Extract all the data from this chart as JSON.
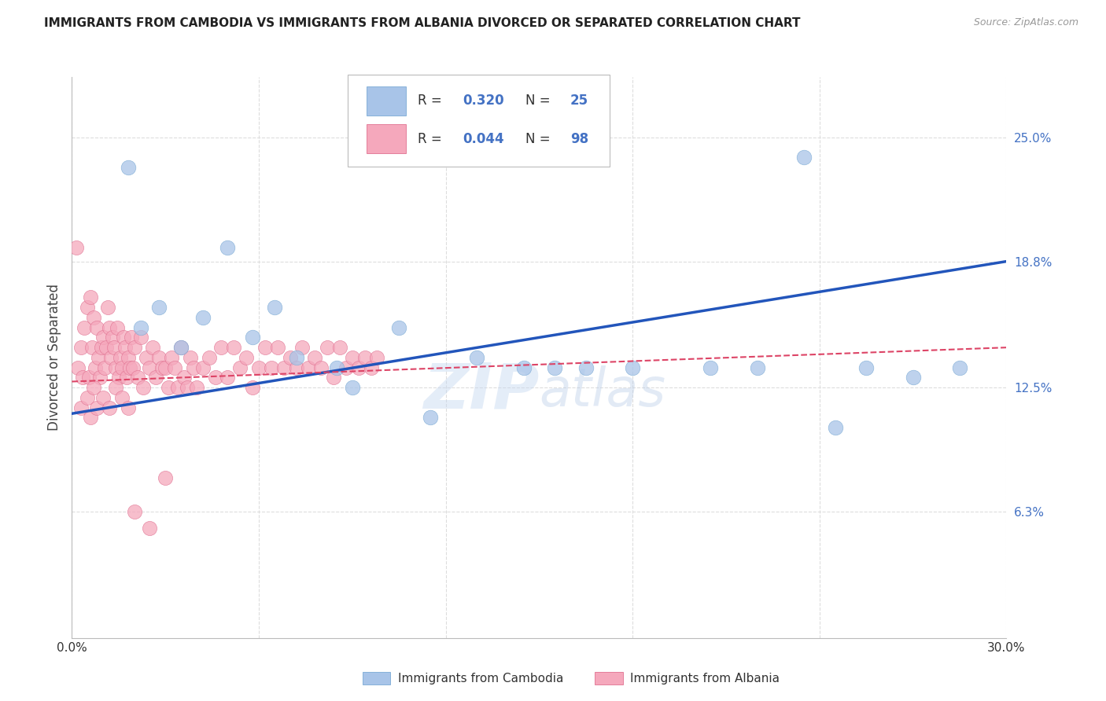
{
  "title": "IMMIGRANTS FROM CAMBODIA VS IMMIGRANTS FROM ALBANIA DIVORCED OR SEPARATED CORRELATION CHART",
  "source": "Source: ZipAtlas.com",
  "ylabel": "Divorced or Separated",
  "ylabel_ticks": [
    6.3,
    12.5,
    18.8,
    25.0
  ],
  "xlim": [
    0.0,
    30.0
  ],
  "ylim": [
    0.0,
    28.0
  ],
  "watermark": "ZIPatlas",
  "legend_cambodia_R": "0.320",
  "legend_cambodia_N": "25",
  "legend_albania_R": "0.044",
  "legend_albania_N": "98",
  "cambodia_color": "#a8c4e8",
  "albania_color": "#f5a8bc",
  "cambodia_edge": "#7aaad4",
  "albania_edge": "#e07090",
  "trendline_cambodia_color": "#2255bb",
  "trendline_albania_color": "#dd4466",
  "cambodia_x": [
    1.8,
    2.2,
    2.8,
    3.5,
    4.2,
    5.0,
    5.8,
    6.5,
    7.2,
    8.5,
    9.0,
    10.5,
    11.5,
    13.0,
    14.5,
    15.5,
    16.5,
    18.0,
    20.5,
    22.0,
    23.5,
    24.5,
    25.5,
    27.0,
    28.5
  ],
  "cambodia_y": [
    23.5,
    15.5,
    16.5,
    14.5,
    16.0,
    19.5,
    15.0,
    16.5,
    14.0,
    13.5,
    12.5,
    15.5,
    11.0,
    14.0,
    13.5,
    13.5,
    13.5,
    13.5,
    13.5,
    13.5,
    24.0,
    10.5,
    13.5,
    13.0,
    13.5
  ],
  "albania_x": [
    0.15,
    0.2,
    0.3,
    0.35,
    0.4,
    0.5,
    0.55,
    0.6,
    0.65,
    0.7,
    0.75,
    0.8,
    0.85,
    0.9,
    0.95,
    1.0,
    1.05,
    1.1,
    1.15,
    1.2,
    1.25,
    1.3,
    1.35,
    1.4,
    1.45,
    1.5,
    1.55,
    1.6,
    1.65,
    1.7,
    1.75,
    1.8,
    1.85,
    1.9,
    1.95,
    2.0,
    2.1,
    2.2,
    2.3,
    2.4,
    2.5,
    2.6,
    2.7,
    2.8,
    2.9,
    3.0,
    3.1,
    3.2,
    3.3,
    3.4,
    3.5,
    3.6,
    3.7,
    3.8,
    3.9,
    4.0,
    4.2,
    4.4,
    4.6,
    4.8,
    5.0,
    5.2,
    5.4,
    5.6,
    5.8,
    6.0,
    6.2,
    6.4,
    6.6,
    6.8,
    7.0,
    7.2,
    7.4,
    7.6,
    7.8,
    8.0,
    8.2,
    8.4,
    8.6,
    8.8,
    9.0,
    9.2,
    9.4,
    9.6,
    9.8,
    0.3,
    0.5,
    0.6,
    0.7,
    0.8,
    1.0,
    1.2,
    1.4,
    1.6,
    1.8,
    2.0,
    2.5,
    3.0
  ],
  "albania_y": [
    19.5,
    13.5,
    14.5,
    13.0,
    15.5,
    16.5,
    13.0,
    17.0,
    14.5,
    16.0,
    13.5,
    15.5,
    14.0,
    13.0,
    14.5,
    15.0,
    13.5,
    14.5,
    16.5,
    15.5,
    14.0,
    15.0,
    14.5,
    13.5,
    15.5,
    13.0,
    14.0,
    13.5,
    15.0,
    14.5,
    13.0,
    14.0,
    13.5,
    15.0,
    13.5,
    14.5,
    13.0,
    15.0,
    12.5,
    14.0,
    13.5,
    14.5,
    13.0,
    14.0,
    13.5,
    13.5,
    12.5,
    14.0,
    13.5,
    12.5,
    14.5,
    13.0,
    12.5,
    14.0,
    13.5,
    12.5,
    13.5,
    14.0,
    13.0,
    14.5,
    13.0,
    14.5,
    13.5,
    14.0,
    12.5,
    13.5,
    14.5,
    13.5,
    14.5,
    13.5,
    14.0,
    13.5,
    14.5,
    13.5,
    14.0,
    13.5,
    14.5,
    13.0,
    14.5,
    13.5,
    14.0,
    13.5,
    14.0,
    13.5,
    14.0,
    11.5,
    12.0,
    11.0,
    12.5,
    11.5,
    12.0,
    11.5,
    12.5,
    12.0,
    11.5,
    6.3,
    5.5,
    8.0
  ],
  "trendline_cam_x0": 0.0,
  "trendline_cam_y0": 11.2,
  "trendline_cam_x1": 30.0,
  "trendline_cam_y1": 18.8,
  "trendline_alb_x0": 0.0,
  "trendline_alb_y0": 12.8,
  "trendline_alb_x1": 30.0,
  "trendline_alb_y1": 14.5,
  "background_color": "#ffffff",
  "grid_color": "#dddddd",
  "grid_linestyle": "--"
}
